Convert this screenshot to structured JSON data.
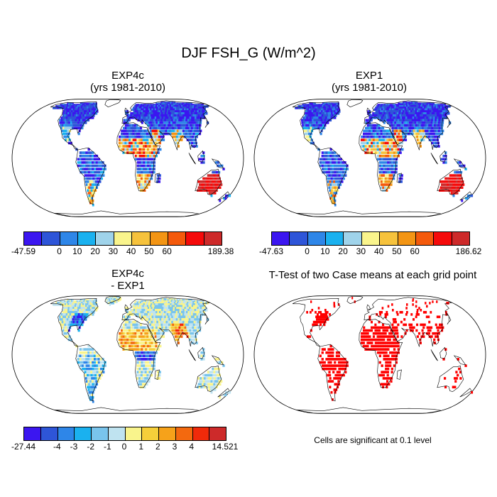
{
  "main_title": "DJF FSH_G (W/m^2)",
  "panels": [
    {
      "id": "exp4c",
      "title_line1": "EXP4c",
      "title_line2": "(yrs 1981-2010)",
      "legend": {
        "colors": [
          "#3b16f0",
          "#2e55d8",
          "#2e86e8",
          "#1ab1ef",
          "#9fd3ea",
          "#f9f48c",
          "#f6c23c",
          "#f39514",
          "#f45a0c",
          "#f50a0a",
          "#cd2a2a"
        ],
        "labels": [
          "-47.59",
          "0",
          "10",
          "20",
          "30",
          "40",
          "50",
          "60",
          "189.38"
        ]
      }
    },
    {
      "id": "exp1",
      "title_line1": "EXP1",
      "title_line2": "(yrs 1981-2010)",
      "legend": {
        "colors": [
          "#3b16f0",
          "#2e55d8",
          "#2e86e8",
          "#1ab1ef",
          "#9fd3ea",
          "#f9f48c",
          "#f6c23c",
          "#f39514",
          "#f45a0c",
          "#f50a0a",
          "#cd2a2a"
        ],
        "labels": [
          "-47.63",
          "0",
          "10",
          "20",
          "30",
          "40",
          "50",
          "60",
          "186.62"
        ]
      }
    },
    {
      "id": "diff",
      "title_line1": "EXP4c",
      "title_line2": "- EXP1",
      "legend": {
        "colors": [
          "#3b16f0",
          "#2e55d8",
          "#2e86e8",
          "#1ab1ef",
          "#79c4ec",
          "#bfe3f0",
          "#f9f48c",
          "#f6cf3a",
          "#f6a21a",
          "#f3690f",
          "#f02a0a",
          "#cd2a2a"
        ],
        "labels": [
          "-27.44",
          "-4",
          "-3",
          "-2",
          "-1",
          "0",
          "1",
          "2",
          "3",
          "4",
          "14.521"
        ]
      }
    },
    {
      "id": "ttest",
      "title_line1": "T-Test of two Case means at each grid point",
      "note": "Cells are significant at 0.1 level",
      "color": "#ff0000"
    }
  ]
}
